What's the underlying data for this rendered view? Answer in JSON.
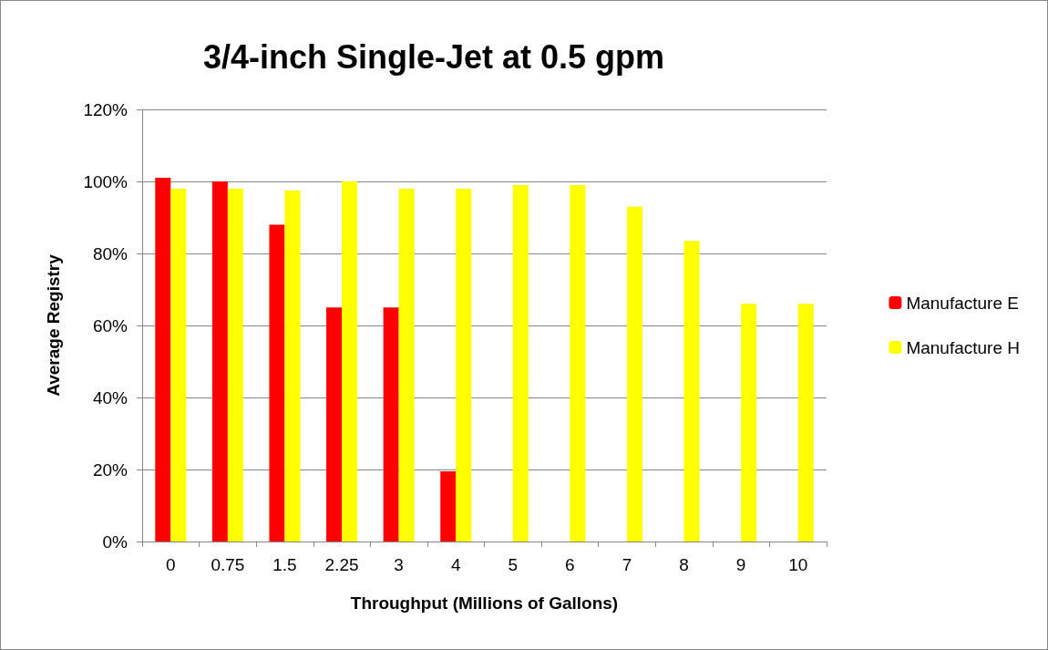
{
  "chart_data": {
    "type": "bar",
    "title": "3/4-inch Single-Jet at 0.5 gpm",
    "xlabel": "Throughput (Millions of Gallons)",
    "ylabel": "Average Registry",
    "categories": [
      "0",
      "0.75",
      "1.5",
      "2.25",
      "3",
      "4",
      "5",
      "6",
      "7",
      "8",
      "9",
      "10"
    ],
    "series": [
      {
        "name": "Manufacture E",
        "color": "#ff0000",
        "values": [
          101,
          100,
          88,
          65,
          65,
          19.5,
          null,
          null,
          null,
          null,
          null,
          null
        ]
      },
      {
        "name": "Manufacture H",
        "color": "#ffff00",
        "values": [
          98,
          98,
          97.5,
          100,
          98,
          98,
          99,
          99,
          93,
          83.5,
          66,
          66
        ]
      }
    ],
    "ylim": [
      0,
      120
    ],
    "yticks": [
      {
        "value": 0,
        "label": "0%"
      },
      {
        "value": 20,
        "label": "20%"
      },
      {
        "value": 40,
        "label": "40%"
      },
      {
        "value": 60,
        "label": "60%"
      },
      {
        "value": 80,
        "label": "80%"
      },
      {
        "value": 100,
        "label": "100%"
      },
      {
        "value": 120,
        "label": "120%"
      }
    ],
    "grid": "y",
    "legend": "right"
  }
}
